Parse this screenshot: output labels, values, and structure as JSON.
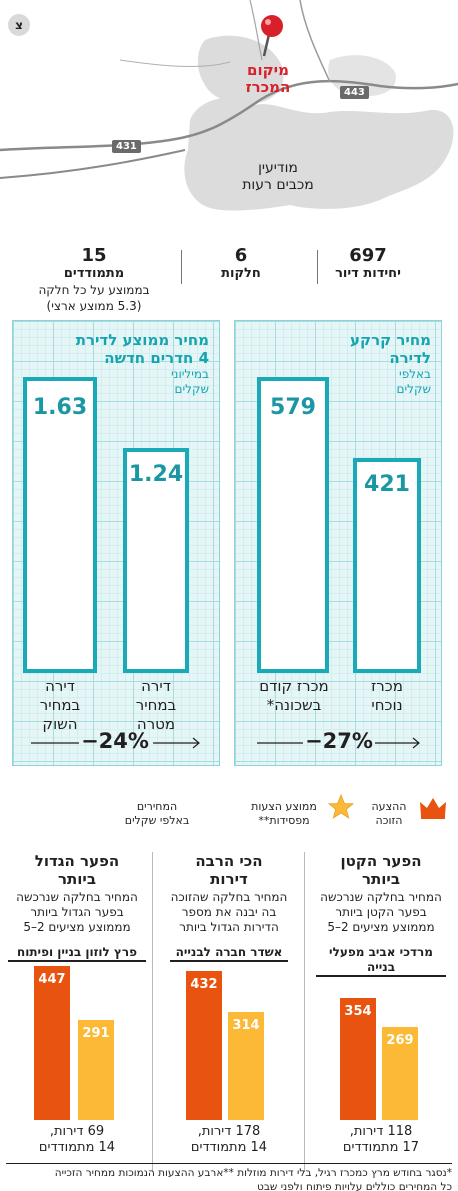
{
  "map": {
    "north": "צ",
    "pin_label_1": "מיקום",
    "pin_label_2": "המכרז",
    "city_1": "מודיעין",
    "city_2": "מכבים רעות",
    "road_443": "443",
    "road_431": "431"
  },
  "stats": [
    {
      "num": "697",
      "label": "יחידות דיור"
    },
    {
      "num": "6",
      "label": "חלקות"
    },
    {
      "num": "15",
      "label": "מתמודדים",
      "sub1": "בממוצע על כל חלקה",
      "sub2": "(5.3 ממוצע ארצי)"
    }
  ],
  "land_panel": {
    "title_1": "מחיר קרקע",
    "title_2": "לדירה",
    "sub_1": "באלפי",
    "sub_2": "שקלים",
    "change": "−27%"
  },
  "apt_panel": {
    "title_1": "מחיר ממוצע לדירת",
    "title_2": "4 חדרים חדשה",
    "sub_1": "במיליוני",
    "sub_2": "שקלים",
    "change": "−24%"
  },
  "chart_data": [
    {
      "type": "bar",
      "title": "מחיר קרקע לדירה",
      "ylabel": "באלפי שקלים",
      "categories": [
        "מכרז נוכחי",
        "מכרז קודם בשכונה*"
      ],
      "values": [
        421,
        579
      ]
    },
    {
      "type": "bar",
      "title": "מחיר ממוצע לדירת 4 חדרים חדשה",
      "ylabel": "במיליוני שקלים",
      "categories": [
        "דירה במחיר מטרה",
        "דירה במחיר השוק"
      ],
      "values": [
        1.24,
        1.63
      ]
    },
    {
      "type": "bar",
      "series": [
        {
          "name": "ההצעה הזוכה",
          "values": [
            354,
            432,
            447
          ]
        },
        {
          "name": "ממוצע הצעות מפסידות**",
          "values": [
            269,
            314,
            291
          ]
        }
      ],
      "categories": [
        "מרדכי אביב מפעלי בנייה",
        "אשדר חברה לבנייה",
        "פרץ לוזון בניין ופיתוח"
      ],
      "ylabel": "המחירים באלפי שקלים"
    }
  ],
  "land_bars": {
    "current_val": "421",
    "prev_val": "579",
    "current_cap_1": "מכרז",
    "current_cap_2": "נוכחי",
    "prev_cap_1": "מכרז קודם",
    "prev_cap_2": "בשכונה*"
  },
  "apt_bars": {
    "target_val": "1.24",
    "market_val": "1.63",
    "target_cap_1": "דירה",
    "target_cap_2": "במחיר",
    "target_cap_3": "מטרה",
    "market_cap_1": "דירה",
    "market_cap_2": "במחיר",
    "market_cap_3": "השוק"
  },
  "legend": {
    "win_1": "ההצעה",
    "win_2": "הזוכה",
    "avg_1": "ממוצע הצעות",
    "avg_2": "מפסידות**",
    "unit_1": "המחירים",
    "unit_2": "באלפי שקלים"
  },
  "columns": [
    {
      "title_1": "הפער הקטן",
      "title_2": "ביותר",
      "desc_1": "המחיר בחלקה שנרכשה",
      "desc_2": "בפער הקטן ביותר",
      "desc_3": "מממוצע מציעים 2–5",
      "name": "מרדכי אביב מפעלי בנייה",
      "win": "354",
      "avg": "269",
      "foot_1": "118 דירות,",
      "foot_2": "17 מתמודדים"
    },
    {
      "title_1": "הכי הרבה",
      "title_2": "דירות",
      "desc_1": "המחיר בחלקה שהזוכה",
      "desc_2": "בה יבנה את מספר",
      "desc_3": "הדירות הגדול ביותר",
      "name": "אשדר חברה לבנייה",
      "win": "432",
      "avg": "314",
      "foot_1": "178 דירות,",
      "foot_2": "14 מתמודדים"
    },
    {
      "title_1": "הפער הגדול",
      "title_2": "ביותר",
      "desc_1": "המחיר בחלקה שנרכשה",
      "desc_2": "בפער הגדול ביותר",
      "desc_3": "מממוצע מציעים 2–5",
      "name": "פרץ לוזון בניין ופיתוח",
      "win": "447",
      "avg": "291",
      "foot_1": "69 דירות,",
      "foot_2": "14 מתמודדים"
    }
  ],
  "footnotes": {
    "line_1": "*נסגר בחודש מרץ כמכרז רגיל, בלי דירות מוזלות **ארבע ההצעות הנמוכות ממחיר הזכייה",
    "line_2": "כל המחירים כוללים עלויות פיתוח ולפני שבט"
  },
  "colors": {
    "teal": "#1aa9b6",
    "orange": "#e8540f",
    "yellow": "#fbb935",
    "pin": "#d8202a"
  }
}
